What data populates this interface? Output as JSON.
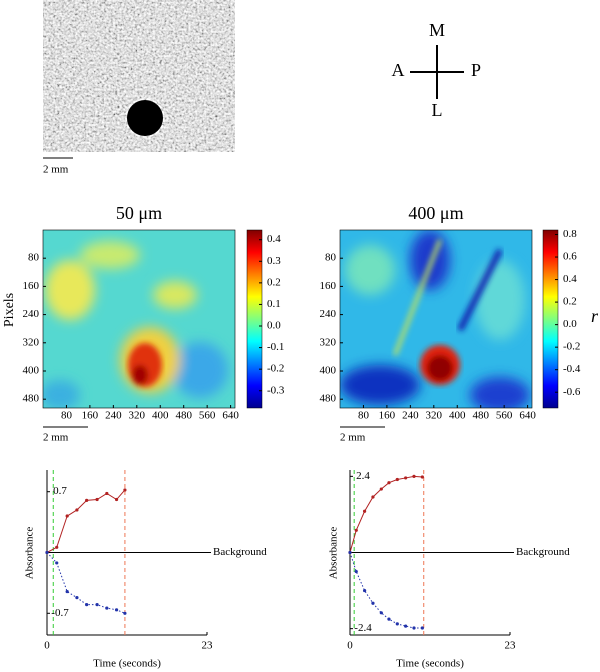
{
  "image_panel": {
    "scale_bar": "2 mm"
  },
  "compass": {
    "top": "M",
    "left": "A",
    "right": "P",
    "bottom": "L"
  },
  "chart_data": [
    {
      "type": "heatmap",
      "title": "50 μm",
      "ylabel": "Pixels",
      "xlim": [
        0,
        655
      ],
      "ylim": [
        0,
        505
      ],
      "xticks": [
        80,
        160,
        240,
        320,
        400,
        480,
        560,
        640
      ],
      "yticks": [
        80,
        160,
        240,
        320,
        400,
        480
      ],
      "colorbar": {
        "lim": [
          -0.38,
          0.445
        ],
        "ticks": [
          0.4,
          0.3,
          0.2,
          0.1,
          {
            "value": 0,
            "label": "0.0"
          },
          -0.2,
          -0.1,
          -0.3
        ]
      },
      "scale_bar": "2 mm"
    },
    {
      "type": "heatmap",
      "title": "400 μm",
      "xlim": [
        0,
        655
      ],
      "ylim": [
        0,
        505
      ],
      "xticks": [
        80,
        160,
        240,
        320,
        400,
        480,
        560,
        640
      ],
      "yticks": [
        80,
        160,
        240,
        320,
        400,
        480
      ],
      "colorbar": {
        "lim": [
          -0.74,
          0.84
        ],
        "ticks": [
          0.8,
          0.6,
          0.4,
          0.2,
          {
            "value": 0,
            "label": "0.0"
          },
          -0.2,
          -0.4,
          -0.6
        ],
        "label": "r"
      },
      "scale_bar": "2 mm"
    },
    {
      "type": "line",
      "xlabel": "Time (seconds)",
      "ylabel": "Absorbance",
      "annotation": "Background",
      "xlim": [
        0,
        23
      ],
      "ylim": [
        -0.95,
        0.95
      ],
      "xticks": [
        0,
        23
      ],
      "yticks": [
        0.7,
        -0.7
      ],
      "vlines": [
        {
          "value": 0.9,
          "color": "#33cc33"
        },
        {
          "value": 11.2,
          "color": "#ee7755"
        }
      ],
      "x": [
        0,
        1.4,
        2.9,
        4.3,
        5.7,
        7.2,
        8.6,
        10,
        11.2
      ],
      "series": [
        {
          "color": "#b22222",
          "line_style": "solid",
          "values": [
            0,
            0.06,
            0.42,
            0.49,
            0.6,
            0.61,
            0.68,
            0.61,
            0.72
          ]
        },
        {
          "color": "#2233aa",
          "line_style": "dotted",
          "values": [
            0,
            -0.12,
            -0.45,
            -0.52,
            -0.6,
            -0.6,
            -0.64,
            -0.66,
            -0.7
          ]
        }
      ]
    },
    {
      "type": "line",
      "xlabel": "Time (seconds)",
      "ylabel": "Absorbance",
      "annotation": "Background",
      "xlim": [
        0,
        23
      ],
      "ylim": [
        -2.6,
        2.6
      ],
      "xticks": [
        0,
        23
      ],
      "yticks": [
        2.4,
        -2.4
      ],
      "vlines": [
        {
          "value": 0.6,
          "color": "#33cc33"
        },
        {
          "value": 10.6,
          "color": "#ee7755"
        }
      ],
      "x": [
        0,
        0.9,
        2.1,
        3.3,
        4.5,
        5.6,
        6.8,
        8,
        9.2,
        10.4
      ],
      "series": [
        {
          "color": "#b22222",
          "line_style": "solid",
          "values": [
            0,
            0.7,
            1.3,
            1.75,
            2.0,
            2.2,
            2.3,
            2.35,
            2.4,
            2.38
          ]
        },
        {
          "color": "#2233aa",
          "line_style": "dotted",
          "values": [
            0,
            -0.6,
            -1.2,
            -1.6,
            -1.9,
            -2.1,
            -2.25,
            -2.32,
            -2.38,
            -2.38
          ]
        }
      ]
    }
  ]
}
